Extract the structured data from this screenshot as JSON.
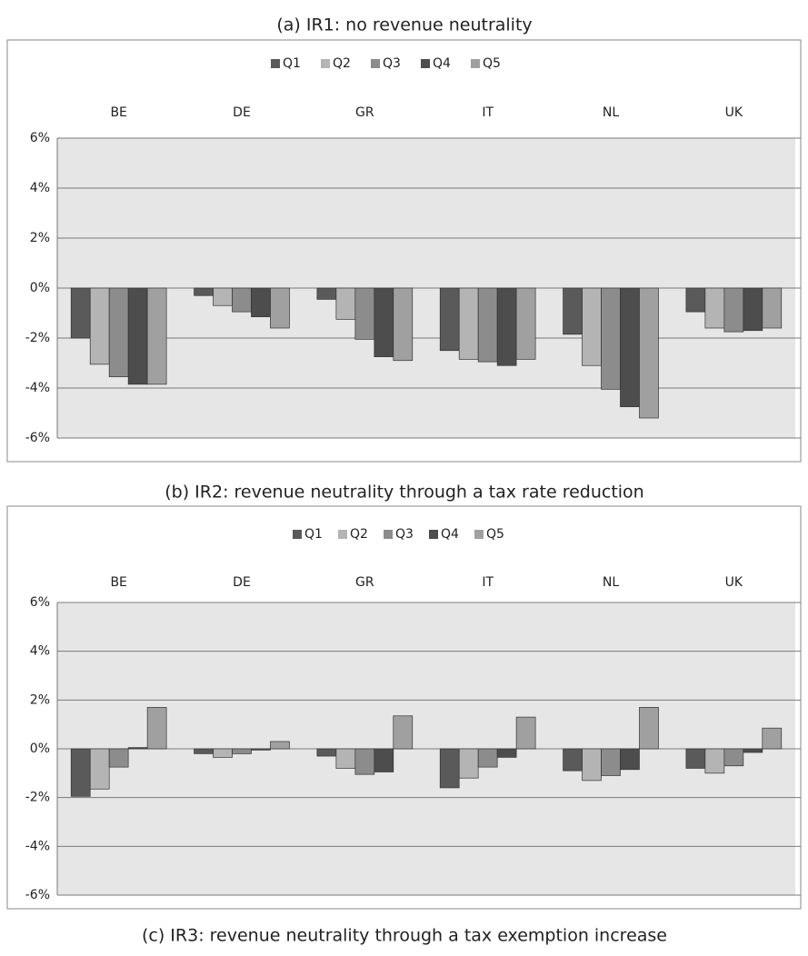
{
  "chart_data": [
    {
      "type": "bar",
      "title": "(a) IR1: no revenue neutrality",
      "categories": [
        "BE",
        "DE",
        "GR",
        "IT",
        "NL",
        "UK"
      ],
      "series": [
        {
          "name": "Q1",
          "color": "#5a5a5a",
          "values": [
            -2.0,
            -0.3,
            -0.45,
            -2.5,
            -1.85,
            -0.95
          ]
        },
        {
          "name": "Q2",
          "color": "#b4b4b4",
          "values": [
            -3.05,
            -0.7,
            -1.25,
            -2.85,
            -3.1,
            -1.6
          ]
        },
        {
          "name": "Q3",
          "color": "#8c8c8c",
          "values": [
            -3.55,
            -0.95,
            -2.05,
            -2.95,
            -4.05,
            -1.75
          ]
        },
        {
          "name": "Q4",
          "color": "#4d4d4d",
          "values": [
            -3.85,
            -1.15,
            -2.75,
            -3.1,
            -4.75,
            -1.7
          ]
        },
        {
          "name": "Q5",
          "color": "#a0a0a0",
          "values": [
            -3.85,
            -1.6,
            -2.9,
            -2.85,
            -5.2,
            -1.6
          ]
        }
      ],
      "ylim": [
        -6,
        6
      ],
      "yticks": [
        {
          "value": -6,
          "label": "-6%"
        },
        {
          "value": -4,
          "label": "-4%"
        },
        {
          "value": -2,
          "label": "-2%"
        },
        {
          "value": 0,
          "label": "0%"
        },
        {
          "value": 2,
          "label": "2%"
        },
        {
          "value": 4,
          "label": "4%"
        },
        {
          "value": 6,
          "label": "6%"
        }
      ],
      "grid": true,
      "legend": "top"
    },
    {
      "type": "bar",
      "title": "(b) IR2: revenue neutrality through a tax rate reduction",
      "categories": [
        "BE",
        "DE",
        "GR",
        "IT",
        "NL",
        "UK"
      ],
      "series": [
        {
          "name": "Q1",
          "color": "#5a5a5a",
          "values": [
            -1.95,
            -0.2,
            -0.3,
            -1.6,
            -0.9,
            -0.8
          ]
        },
        {
          "name": "Q2",
          "color": "#b4b4b4",
          "values": [
            -1.65,
            -0.35,
            -0.8,
            -1.2,
            -1.3,
            -1.0
          ]
        },
        {
          "name": "Q3",
          "color": "#8c8c8c",
          "values": [
            -0.75,
            -0.2,
            -1.05,
            -0.75,
            -1.1,
            -0.7
          ]
        },
        {
          "name": "Q4",
          "color": "#4d4d4d",
          "values": [
            0.05,
            -0.05,
            -0.95,
            -0.35,
            -0.85,
            -0.15
          ]
        },
        {
          "name": "Q5",
          "color": "#a0a0a0",
          "values": [
            1.7,
            0.3,
            1.35,
            1.3,
            1.7,
            0.85
          ]
        }
      ],
      "ylim": [
        -6,
        6
      ],
      "yticks": [
        {
          "value": -6,
          "label": "-6%"
        },
        {
          "value": -4,
          "label": "-4%"
        },
        {
          "value": -2,
          "label": "-2%"
        },
        {
          "value": 0,
          "label": "0%"
        },
        {
          "value": 2,
          "label": "2%"
        },
        {
          "value": 4,
          "label": "4%"
        },
        {
          "value": 6,
          "label": "6%"
        }
      ],
      "grid": true,
      "legend": "top"
    }
  ],
  "extra_caption": "(c) IR3: revenue neutrality through a tax exemption increase"
}
